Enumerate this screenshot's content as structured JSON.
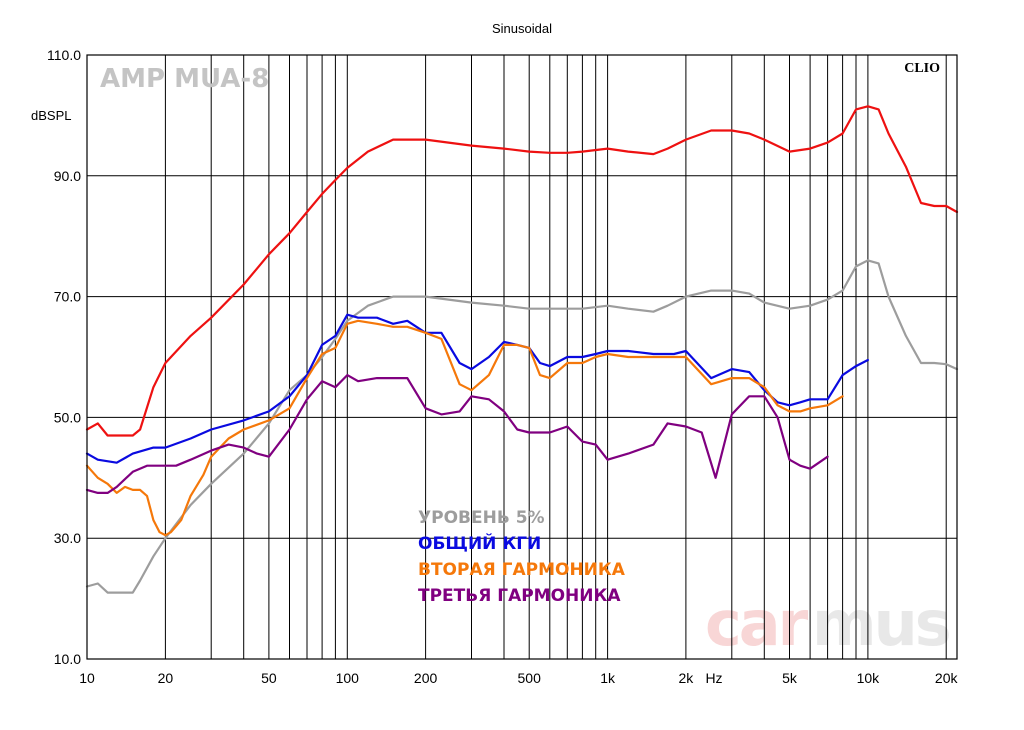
{
  "chart_data": {
    "type": "line",
    "title": "Sinusoidal",
    "ylabel": "dBSPL",
    "xlabel": "Hz",
    "x_scale": "log",
    "xlim": [
      10,
      22000
    ],
    "ylim": [
      10,
      110
    ],
    "grid": true,
    "y_ticks": [
      {
        "v": 10,
        "label": "10.0"
      },
      {
        "v": 30,
        "label": "30.0"
      },
      {
        "v": 50,
        "label": "50.0"
      },
      {
        "v": 70,
        "label": "70.0"
      },
      {
        "v": 90,
        "label": "90.0"
      },
      {
        "v": 110,
        "label": "110.0"
      }
    ],
    "x_ticks": [
      {
        "v": 10,
        "label": "10"
      },
      {
        "v": 20,
        "label": "20"
      },
      {
        "v": 50,
        "label": "50"
      },
      {
        "v": 100,
        "label": "100"
      },
      {
        "v": 200,
        "label": "200"
      },
      {
        "v": 500,
        "label": "500"
      },
      {
        "v": 1000,
        "label": "1k"
      },
      {
        "v": 2000,
        "label": "2k"
      },
      {
        "v": 5000,
        "label": "5k"
      },
      {
        "v": 10000,
        "label": "10k"
      },
      {
        "v": 20000,
        "label": "20k"
      }
    ],
    "x_unit_label": "Hz",
    "annotations": {
      "top_left": "AMP MUA-8",
      "top_right": "CLIO",
      "watermark_a": "car",
      "watermark_b": "mus"
    },
    "legend_placement": "center",
    "series": [
      {
        "name": "",
        "color": "#ee1111",
        "x": [
          10,
          11,
          12,
          13,
          15,
          16,
          18,
          20,
          25,
          30,
          40,
          50,
          60,
          70,
          80,
          90,
          100,
          120,
          150,
          200,
          300,
          400,
          500,
          600,
          700,
          800,
          1000,
          1200,
          1500,
          1700,
          2000,
          2500,
          3000,
          3500,
          4000,
          5000,
          6000,
          7000,
          8000,
          9000,
          10000,
          11000,
          12000,
          14000,
          16000,
          18000,
          20000,
          22000
        ],
        "y": [
          48,
          49,
          47,
          47,
          47,
          48,
          55,
          59,
          63.5,
          66.5,
          72,
          77,
          80.5,
          84,
          87,
          89.3,
          91.3,
          94,
          96,
          96,
          95,
          94.5,
          94,
          93.8,
          93.8,
          94,
          94.5,
          94,
          93.6,
          94.5,
          96,
          97.5,
          97.5,
          97,
          96,
          94,
          94.5,
          95.5,
          97,
          101,
          101.5,
          101,
          97,
          91.5,
          85.5,
          85,
          85,
          84
        ]
      },
      {
        "name": "УРОВЕНЬ 5%",
        "color": "#9d9d9d",
        "x": [
          10,
          11,
          12,
          13,
          15,
          16,
          18,
          20,
          25,
          30,
          40,
          50,
          60,
          70,
          80,
          90,
          100,
          120,
          150,
          200,
          300,
          400,
          500,
          600,
          700,
          800,
          1000,
          1200,
          1500,
          1700,
          2000,
          2500,
          3000,
          3500,
          4000,
          5000,
          6000,
          7000,
          8000,
          9000,
          10000,
          11000,
          12000,
          14000,
          16000,
          18000,
          20000,
          22000
        ],
        "y": [
          22,
          22.5,
          21,
          21,
          21,
          23,
          27,
          30,
          35.5,
          39,
          44,
          49,
          54.5,
          57,
          60,
          63,
          66,
          68.5,
          70,
          70,
          69,
          68.5,
          68,
          68,
          68,
          68,
          68.5,
          68,
          67.5,
          68.5,
          70,
          71,
          71,
          70.5,
          69,
          68,
          68.5,
          69.5,
          71,
          75,
          76,
          75.5,
          70,
          63.5,
          59,
          59,
          58.8,
          58
        ]
      },
      {
        "name": "ОБЩИЙ КГИ",
        "color": "#0a0ae0",
        "x": [
          10,
          11,
          13,
          15,
          18,
          20,
          25,
          30,
          40,
          50,
          60,
          70,
          80,
          90,
          100,
          110,
          130,
          150,
          170,
          200,
          230,
          270,
          300,
          350,
          400,
          450,
          500,
          550,
          600,
          700,
          800,
          900,
          1000,
          1200,
          1500,
          1800,
          2000,
          2500,
          3000,
          3500,
          4000,
          4500,
          5000,
          5500,
          6000,
          7000,
          8000,
          9000,
          10000
        ],
        "y": [
          44,
          43,
          42.5,
          44,
          45,
          45,
          46.5,
          48,
          49.5,
          51,
          53.5,
          57,
          62,
          63.5,
          67,
          66.5,
          66.5,
          65.5,
          66,
          64,
          64,
          59,
          58,
          60,
          62.5,
          62,
          61.5,
          59,
          58.5,
          60,
          60,
          60.5,
          61,
          61,
          60.5,
          60.5,
          61,
          56.5,
          58,
          57.5,
          54.5,
          52.5,
          52,
          52.5,
          53,
          53,
          57,
          58.5,
          59.5
        ]
      },
      {
        "name": "ВТОРАЯ ГАРМОНИКА",
        "color": "#f5780a",
        "x": [
          10,
          11,
          12,
          13,
          14,
          15,
          16,
          17,
          18,
          19,
          20,
          21,
          22,
          23,
          25,
          28,
          30,
          35,
          40,
          50,
          60,
          70,
          80,
          90,
          100,
          110,
          130,
          150,
          170,
          200,
          230,
          270,
          300,
          350,
          400,
          450,
          500,
          550,
          600,
          700,
          800,
          900,
          1000,
          1200,
          1500,
          1800,
          2000,
          2500,
          3000,
          3500,
          4000,
          4500,
          5000,
          5500,
          6000,
          7000,
          8000,
          9000,
          10000
        ],
        "y": [
          42,
          40,
          39,
          37.5,
          38.5,
          38,
          38,
          37,
          33,
          31,
          30.5,
          31,
          32,
          33,
          37,
          40.5,
          43.5,
          46.5,
          48,
          49.5,
          51.5,
          56.5,
          60.5,
          61.5,
          65.5,
          66,
          65.5,
          65,
          65,
          64,
          63,
          55.5,
          54.5,
          57,
          62,
          62,
          61.5,
          57,
          56.5,
          59,
          59,
          60,
          60.5,
          60,
          60,
          60,
          60,
          55.5,
          56.5,
          56.5,
          55,
          52,
          51,
          51,
          51.5,
          52,
          53.5,
          null,
          null
        ]
      },
      {
        "name": "ТРЕТЬЯ ГАРМОНИКА",
        "color": "#800080",
        "x": [
          10,
          11,
          12,
          13,
          15,
          17,
          20,
          22,
          25,
          30,
          35,
          40,
          45,
          50,
          60,
          70,
          80,
          90,
          100,
          110,
          130,
          150,
          170,
          200,
          230,
          270,
          300,
          350,
          400,
          450,
          500,
          550,
          600,
          700,
          800,
          900,
          1000,
          1200,
          1500,
          1700,
          2000,
          2300,
          2600,
          3000,
          3500,
          4000,
          4500,
          5000,
          5500,
          6000,
          7000
        ],
        "y": [
          38,
          37.5,
          37.5,
          38.5,
          41,
          42,
          42,
          42,
          43,
          44.5,
          45.5,
          45,
          44,
          43.5,
          48,
          53,
          56,
          55,
          57,
          56,
          56.5,
          56.5,
          56.5,
          51.5,
          50.5,
          51,
          53.5,
          53,
          51,
          48,
          47.5,
          47.5,
          47.5,
          48.5,
          46,
          45.5,
          43,
          44,
          45.5,
          49,
          48.5,
          47.5,
          40,
          50.5,
          53.5,
          53.5,
          50,
          43,
          42,
          41.5,
          43.5
        ]
      }
    ]
  }
}
